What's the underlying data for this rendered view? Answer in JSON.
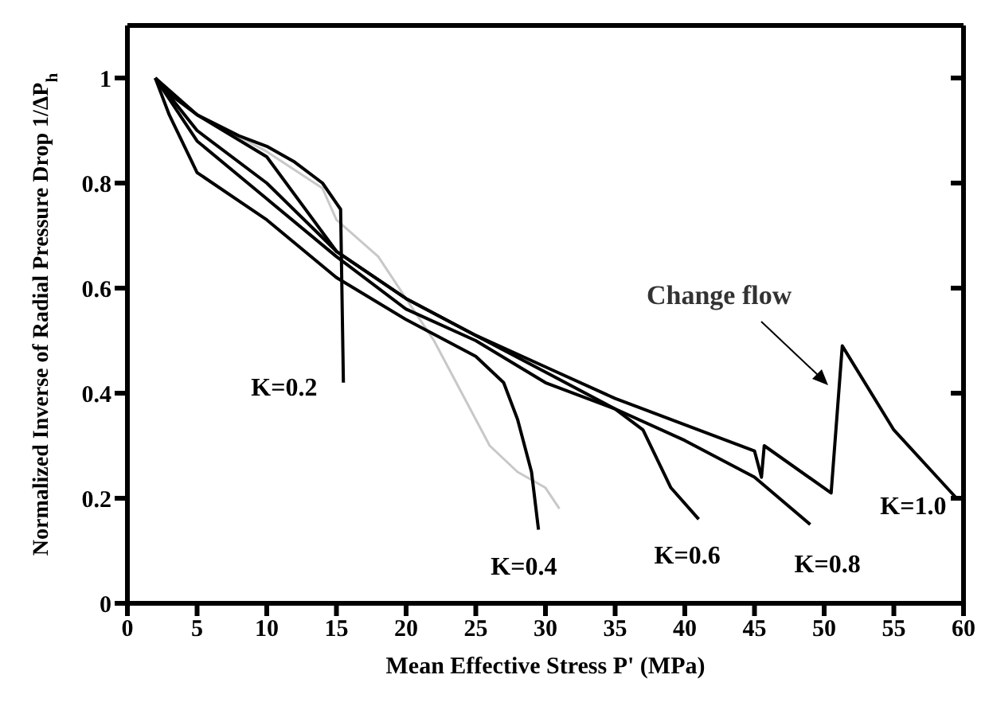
{
  "chart_data": {
    "type": "line",
    "xlabel": "Mean Effective Stress P' (MPa)",
    "ylabel": "Normalized Inverse of Radial Pressure Drop 1/ΔP$_{h}$",
    "xlim": [
      0,
      60
    ],
    "xticks": [
      0,
      5,
      10,
      15,
      20,
      25,
      30,
      35,
      40,
      45,
      50,
      55,
      60
    ],
    "ylim": [
      0,
      1.1
    ],
    "yticks": [
      0,
      0.2,
      0.4,
      0.6,
      0.8,
      {
        "value": 1,
        "label": "1"
      }
    ],
    "marker": "none",
    "line_style": "solid",
    "annotations": [
      "Change flow"
    ],
    "series": [
      {
        "color": "#c8c8c8",
        "x": [
          2,
          5,
          10,
          14,
          15,
          18,
          22,
          24,
          26,
          28,
          30,
          31
        ],
        "values": [
          1,
          0.93,
          0.86,
          0.79,
          0.73,
          0.66,
          0.5,
          0.4,
          0.3,
          0.25,
          0.22,
          0.18
        ]
      },
      {
        "name": "K=0.2",
        "color": "#000000",
        "x": [
          2,
          3,
          5,
          8,
          10,
          12,
          14,
          15.3,
          15.5
        ],
        "values": [
          1,
          0.97,
          0.93,
          0.89,
          0.87,
          0.84,
          0.8,
          0.75,
          0.42
        ]
      },
      {
        "name": "K=0.4",
        "color": "#000000",
        "x": [
          2,
          3,
          5,
          10,
          15,
          20,
          25,
          27,
          28,
          29,
          29.5
        ],
        "values": [
          1,
          0.93,
          0.82,
          0.73,
          0.62,
          0.54,
          0.47,
          0.42,
          0.35,
          0.25,
          0.14
        ]
      },
      {
        "name": "K=0.6",
        "color": "#000000",
        "x": [
          2,
          5,
          10,
          15,
          20,
          25,
          30,
          35,
          37,
          39,
          41
        ],
        "values": [
          1,
          0.88,
          0.77,
          0.66,
          0.56,
          0.5,
          0.42,
          0.37,
          0.33,
          0.22,
          0.16
        ]
      },
      {
        "name": "K=0.8",
        "color": "#000000",
        "x": [
          2,
          5,
          10,
          15,
          20,
          25,
          30,
          35,
          40,
          45,
          49
        ],
        "values": [
          1,
          0.9,
          0.8,
          0.67,
          0.58,
          0.51,
          0.44,
          0.37,
          0.31,
          0.24,
          0.15
        ]
      },
      {
        "name": "K=1.0",
        "color": "#000000",
        "x": [
          2,
          5,
          10,
          15,
          20,
          25,
          30,
          35,
          40,
          45,
          45.5,
          45.7,
          50.5,
          51.3,
          55,
          59.5
        ],
        "values": [
          1,
          0.93,
          0.85,
          0.67,
          0.58,
          0.51,
          0.45,
          0.39,
          0.34,
          0.29,
          0.24,
          0.3,
          0.21,
          0.49,
          0.33,
          0.2
        ]
      }
    ]
  }
}
